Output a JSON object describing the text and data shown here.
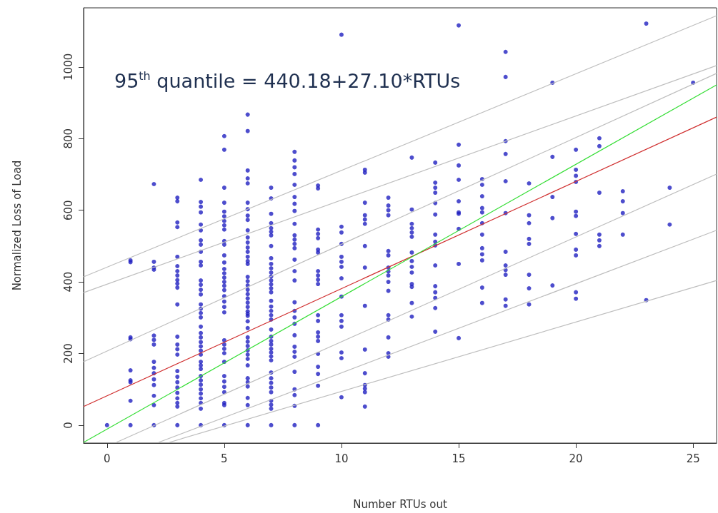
{
  "chart_data": {
    "type": "scatter",
    "xlabel": "Number RTUs out",
    "ylabel": "Normalized Loss of Load",
    "annotations": [
      "95$^{th}$ quantile = 440.18+27.10*RTUs"
    ],
    "xlim": [
      -1,
      26
    ],
    "ylim": [
      -50,
      1165
    ],
    "xticks": [
      0,
      5,
      10,
      15,
      20,
      25
    ],
    "yticks": [
      0,
      200,
      400,
      600,
      800,
      1000
    ],
    "grid": false,
    "marker": "circle",
    "series": [
      {
        "color": "#2020c0",
        "x": [
          0,
          1,
          1,
          1,
          1,
          1,
          1,
          1,
          1,
          1,
          2,
          2,
          2,
          2,
          2,
          2,
          2,
          2,
          2,
          2,
          2,
          2,
          2,
          2,
          2,
          3,
          3,
          3,
          3,
          3,
          3,
          3,
          3,
          3,
          3,
          3,
          3,
          3,
          3,
          3,
          3,
          3,
          3,
          3,
          3,
          3,
          3,
          3,
          3,
          3,
          4,
          4,
          4,
          4,
          4,
          4,
          4,
          4,
          4,
          4,
          4,
          4,
          4,
          4,
          4,
          4,
          4,
          4,
          4,
          4,
          4,
          4,
          4,
          4,
          4,
          4,
          4,
          4,
          4,
          4,
          4,
          4,
          4,
          4,
          4,
          4,
          4,
          4,
          5,
          5,
          5,
          5,
          5,
          5,
          5,
          5,
          5,
          5,
          5,
          5,
          5,
          5,
          5,
          5,
          5,
          5,
          5,
          5,
          5,
          5,
          5,
          5,
          5,
          5,
          5,
          5,
          5,
          5,
          5,
          5,
          5,
          5,
          5,
          6,
          6,
          6,
          6,
          6,
          6,
          6,
          6,
          6,
          6,
          6,
          6,
          6,
          6,
          6,
          6,
          6,
          6,
          6,
          6,
          6,
          6,
          6,
          6,
          6,
          6,
          6,
          6,
          6,
          6,
          6,
          6,
          6,
          6,
          6,
          6,
          6,
          6,
          6,
          6,
          6,
          6,
          6,
          7,
          7,
          7,
          7,
          7,
          7,
          7,
          7,
          7,
          7,
          7,
          7,
          7,
          7,
          7,
          7,
          7,
          7,
          7,
          7,
          7,
          7,
          7,
          7,
          7,
          7,
          7,
          7,
          7,
          7,
          7,
          7,
          7,
          7,
          7,
          7,
          7,
          7,
          7,
          8,
          8,
          8,
          8,
          8,
          8,
          8,
          8,
          8,
          8,
          8,
          8,
          8,
          8,
          8,
          8,
          8,
          8,
          8,
          8,
          8,
          8,
          8,
          8,
          8,
          8,
          8,
          8,
          8,
          9,
          9,
          9,
          9,
          9,
          9,
          9,
          9,
          9,
          9,
          9,
          9,
          9,
          9,
          9,
          9,
          9,
          9,
          9,
          9,
          9,
          10,
          10,
          10,
          10,
          10,
          10,
          10,
          10,
          10,
          10,
          10,
          10,
          10,
          10,
          10,
          11,
          11,
          11,
          11,
          11,
          11,
          11,
          11,
          11,
          11,
          11,
          11,
          11,
          11,
          11,
          12,
          12,
          12,
          12,
          12,
          12,
          12,
          12,
          12,
          12,
          12,
          12,
          12,
          12,
          12,
          12,
          13,
          13,
          13,
          13,
          13,
          13,
          13,
          13,
          13,
          13,
          13,
          13,
          13,
          13,
          14,
          14,
          14,
          14,
          14,
          14,
          14,
          14,
          14,
          14,
          14,
          14,
          14,
          14,
          14,
          15,
          15,
          15,
          15,
          15,
          15,
          15,
          15,
          15,
          15,
          16,
          16,
          16,
          16,
          16,
          16,
          16,
          16,
          16,
          16,
          16,
          16,
          17,
          17,
          17,
          17,
          17,
          17,
          17,
          17,
          17,
          17,
          17,
          17,
          18,
          18,
          18,
          18,
          18,
          18,
          18,
          18,
          19,
          19,
          19,
          19,
          19,
          20,
          20,
          20,
          20,
          20,
          20,
          20,
          20,
          20,
          20,
          20,
          21,
          21,
          21,
          21,
          21,
          21,
          22,
          22,
          22,
          22,
          23,
          23,
          24,
          24,
          25
        ],
        "values": [
          0,
          460,
          455,
          245,
          240,
          153,
          125,
          120,
          68,
          0,
          673,
          456,
          440,
          434,
          250,
          238,
          225,
          177,
          160,
          145,
          128,
          112,
          82,
          56,
          0,
          635,
          625,
          566,
          553,
          470,
          444,
          430,
          418,
          405,
          395,
          384,
          337,
          247,
          225,
          212,
          197,
          151,
          135,
          120,
          105,
          90,
          75,
          62,
          52,
          0,
          685,
          623,
          610,
          594,
          560,
          544,
          516,
          504,
          484,
          456,
          446,
          404,
          392,
          378,
          365,
          337,
          325,
          313,
          301,
          275,
          257,
          245,
          232,
          220,
          208,
          197,
          177,
          167,
          157,
          137,
          125,
          113,
          100,
          88,
          75,
          62,
          46,
          0,
          807,
          769,
          663,
          621,
          596,
          583,
          570,
          558,
          546,
          514,
          504,
          474,
          454,
          436,
          424,
          412,
          400,
          389,
          377,
          360,
          345,
          330,
          315,
          237,
          225,
          213,
          201,
          177,
          137,
          122,
          107,
          92,
          62,
          56,
          0,
          867,
          821,
          711,
          689,
          675,
          621,
          603,
          585,
          573,
          544,
          524,
          510,
          496,
          484,
          470,
          458,
          450,
          414,
          402,
          390,
          378,
          366,
          354,
          342,
          330,
          318,
          311,
          305,
          290,
          271,
          245,
          233,
          221,
          209,
          197,
          185,
          167,
          131,
          120,
          108,
          76,
          56,
          0,
          663,
          633,
          590,
          564,
          550,
          540,
          530,
          500,
          466,
          450,
          438,
          426,
          415,
          404,
          393,
          382,
          371,
          347,
          331,
          319,
          307,
          295,
          267,
          247,
          235,
          225,
          213,
          203,
          192,
          181,
          147,
          131,
          118,
          105,
          92,
          68,
          57,
          46,
          0,
          763,
          739,
          720,
          701,
          671,
          637,
          618,
          598,
          562,
          530,
          518,
          506,
          494,
          462,
          430,
          404,
          343,
          319,
          301,
          283,
          251,
          219,
          205,
          191,
          149,
          100,
          84,
          54,
          0,
          669,
          661,
          546,
          534,
          522,
          490,
          482,
          430,
          418,
          406,
          394,
          307,
          291,
          259,
          247,
          235,
          199,
          163,
          143,
          110,
          0,
          1090,
          554,
          538,
          506,
          470,
          456,
          442,
          410,
          359,
          307,
          291,
          275,
          203,
          187,
          78,
          713,
          705,
          621,
          586,
          574,
          562,
          500,
          440,
          333,
          211,
          145,
          112,
          102,
          92,
          52,
          635,
          613,
          600,
          586,
          486,
          474,
          440,
          429,
          418,
          400,
          375,
          307,
          295,
          245,
          201,
          191,
          747,
          602,
          562,
          550,
          538,
          526,
          482,
          458,
          442,
          426,
          394,
          386,
          341,
          303,
          733,
          677,
          663,
          649,
          620,
          588,
          532,
          512,
          502,
          446,
          388,
          371,
          355,
          327,
          261,
          1116,
          783,
          725,
          685,
          625,
          594,
          590,
          548,
          450,
          243,
          687,
          671,
          639,
          606,
          594,
          564,
          532,
          494,
          477,
          460,
          384,
          341,
          1042,
          972,
          793,
          757,
          681,
          592,
          484,
          446,
          433,
          420,
          351,
          333,
          675,
          586,
          564,
          520,
          506,
          420,
          382,
          337,
          956,
          749,
          637,
          578,
          390,
          769,
          713,
          696,
          679,
          596,
          584,
          534,
          490,
          474,
          371,
          353,
          801,
          779,
          649,
          532,
          516,
          500,
          653,
          625,
          592,
          532,
          1121,
          349,
          663,
          560,
          956
        ]
      },
      {
        "type": "line",
        "marker": "none",
        "color": "#bebebe",
        "x": [
          -1,
          26
        ],
        "values": [
          414,
          1143
        ]
      },
      {
        "type": "line",
        "marker": "none",
        "color": "#bebebe",
        "x": [
          -1,
          26
        ],
        "values": [
          370,
          1004
        ]
      },
      {
        "type": "line",
        "marker": "none",
        "color": "#bebebe",
        "x": [
          -1,
          26
        ],
        "values": [
          177,
          982
        ]
      },
      {
        "type": "line",
        "marker": "none",
        "color": "#bebebe",
        "x": [
          0.4,
          26
        ],
        "values": [
          -48,
          701
        ]
      },
      {
        "type": "line",
        "marker": "none",
        "color": "#bebebe",
        "x": [
          2.2,
          26
        ],
        "values": [
          -48,
          544
        ]
      },
      {
        "type": "line",
        "marker": "none",
        "color": "#bebebe",
        "x": [
          2.66,
          26
        ],
        "values": [
          -48,
          404
        ]
      },
      {
        "type": "line",
        "marker": "none",
        "color": "#d03030",
        "x": [
          -1,
          26
        ],
        "values": [
          52,
          860
        ]
      },
      {
        "type": "line",
        "marker": "none",
        "color": "#33dd33",
        "x": [
          -1,
          26
        ],
        "values": [
          -48,
          950
        ]
      }
    ]
  }
}
